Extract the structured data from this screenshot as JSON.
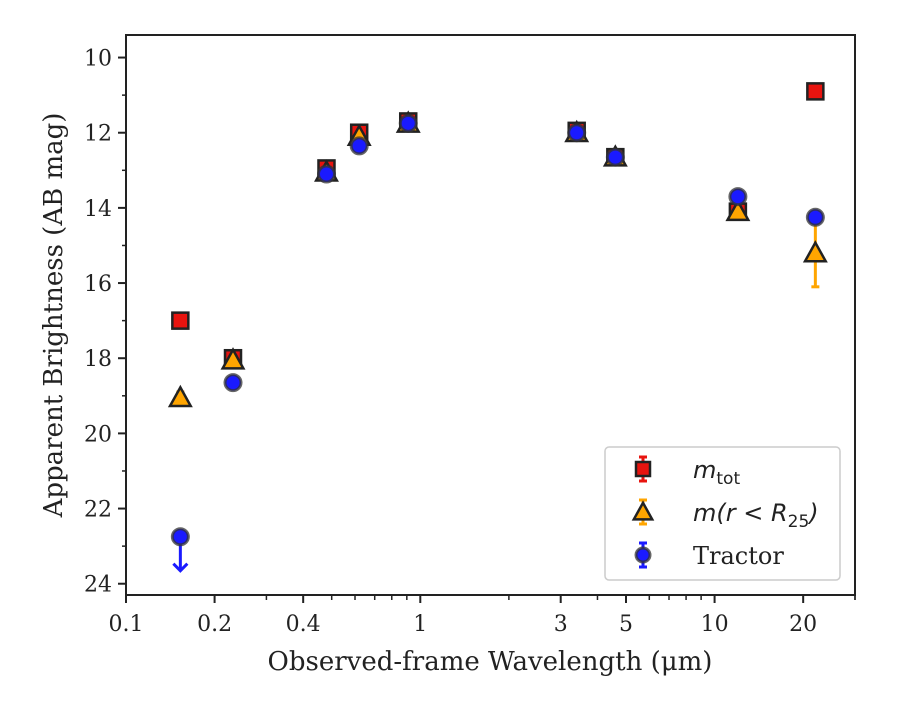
{
  "chart_data": {
    "type": "scatter",
    "xscale": "log",
    "xlim": [
      0.1,
      30
    ],
    "ylim": [
      24.3,
      9.4
    ],
    "y_inverted": true,
    "grid": false,
    "xlabel": "Observed-frame Wavelength (μm)",
    "ylabel": "Apparent Brightness (AB mag)",
    "x_ticks": [
      {
        "value": 0.1,
        "label": "0.1"
      },
      {
        "value": 0.2,
        "label": "0.2"
      },
      {
        "value": 0.4,
        "label": "0.4"
      },
      {
        "value": 1,
        "label": "1"
      },
      {
        "value": 3,
        "label": "3"
      },
      {
        "value": 5,
        "label": "5"
      },
      {
        "value": 10,
        "label": "10"
      },
      {
        "value": 20,
        "label": "20"
      }
    ],
    "y_ticks": [
      {
        "value": 10,
        "label": "10"
      },
      {
        "value": 12,
        "label": "12"
      },
      {
        "value": 14,
        "label": "14"
      },
      {
        "value": 16,
        "label": "16"
      },
      {
        "value": 18,
        "label": "18"
      },
      {
        "value": 20,
        "label": "20"
      },
      {
        "value": 22,
        "label": "22"
      },
      {
        "value": 24,
        "label": "24"
      }
    ],
    "legend_position": "lower-right",
    "series": [
      {
        "name": "m_tot",
        "legend_main": "m",
        "legend_sub": "tot",
        "marker": "square",
        "color": "#e8140f",
        "ecolor": "#e8140f",
        "points": [
          {
            "x": 0.153,
            "y": 17.0,
            "err": 0.05
          },
          {
            "x": 0.231,
            "y": 18.0,
            "err": 0.05
          },
          {
            "x": 0.48,
            "y": 12.95,
            "err": 0.05
          },
          {
            "x": 0.62,
            "y": 12.0,
            "err": 0.05
          },
          {
            "x": 0.91,
            "y": 11.7,
            "err": 0.05
          },
          {
            "x": 3.4,
            "y": 11.95,
            "err": 0.05
          },
          {
            "x": 4.6,
            "y": 12.65,
            "err": 0.05
          },
          {
            "x": 12.0,
            "y": 14.1,
            "err": 0.05
          },
          {
            "x": 22.0,
            "y": 10.9,
            "err": 0.05
          }
        ]
      },
      {
        "name": "m(r < R25)",
        "legend_main": "m(r < R",
        "legend_sub": "25",
        "legend_tail": ")",
        "marker": "triangle",
        "color": "#ffa500",
        "ecolor": "#ffa500",
        "points": [
          {
            "x": 0.153,
            "y": 19.05,
            "err": 0.15
          },
          {
            "x": 0.231,
            "y": 18.05,
            "err": 0.05
          },
          {
            "x": 0.48,
            "y": 13.05,
            "err": 0.05
          },
          {
            "x": 0.62,
            "y": 12.1,
            "err": 0.05
          },
          {
            "x": 0.91,
            "y": 11.75,
            "err": 0.05
          },
          {
            "x": 3.4,
            "y": 12.0,
            "err": 0.05
          },
          {
            "x": 4.6,
            "y": 12.65,
            "err": 0.05
          },
          {
            "x": 12.0,
            "y": 14.1,
            "err": 0.05
          },
          {
            "x": 22.0,
            "y": 15.2,
            "err": 0.9
          }
        ]
      },
      {
        "name": "Tractor",
        "legend_main": "Tractor",
        "marker": "circle",
        "color": "#1a1aff",
        "ecolor": "#1a1aff",
        "points": [
          {
            "x": 0.153,
            "y": 22.75,
            "err": 0,
            "upper_limit": true
          },
          {
            "x": 0.231,
            "y": 18.65,
            "err": 0.05
          },
          {
            "x": 0.48,
            "y": 13.1,
            "err": 0.05
          },
          {
            "x": 0.62,
            "y": 12.35,
            "err": 0.05
          },
          {
            "x": 0.91,
            "y": 11.75,
            "err": 0.05
          },
          {
            "x": 3.4,
            "y": 12.0,
            "err": 0.05
          },
          {
            "x": 4.6,
            "y": 12.65,
            "err": 0.05
          },
          {
            "x": 12.0,
            "y": 13.7,
            "err": 0.05
          },
          {
            "x": 22.0,
            "y": 14.25,
            "err": 0.05
          }
        ]
      }
    ]
  }
}
